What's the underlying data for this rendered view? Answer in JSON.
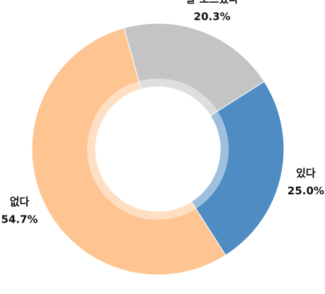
{
  "chart_data": {
    "type": "donut",
    "categories": [
      "있다",
      "없다",
      "잘 모르겠다"
    ],
    "values": [
      25.0,
      54.7,
      20.3
    ],
    "value_labels": [
      "25.0%",
      "54.7%",
      "20.3%"
    ],
    "colors": [
      "#4f8cc4",
      "#fec592",
      "#c4c4c4"
    ]
  }
}
